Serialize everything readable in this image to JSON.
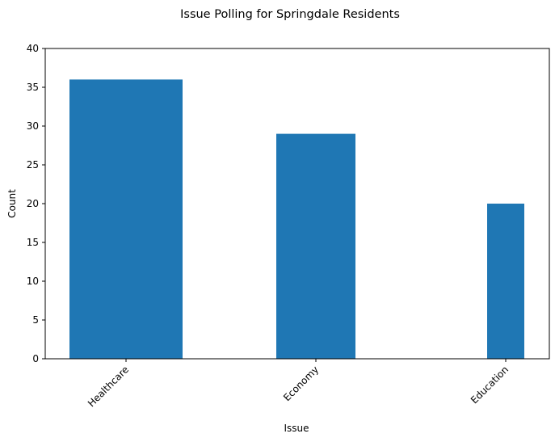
{
  "chart_data": {
    "type": "bar",
    "title": "Issue Polling for Springdale Residents",
    "xlabel": "Issue",
    "ylabel": "Count",
    "categories": [
      "Healthcare",
      "Economy",
      "Education"
    ],
    "values": [
      36,
      29,
      20
    ],
    "ylim": [
      0,
      40
    ],
    "yticks": [
      "0",
      "5",
      "10",
      "15",
      "20",
      "25",
      "30",
      "35",
      "40"
    ],
    "bar_color": "#1f77b4",
    "grid": false,
    "legend": "none"
  }
}
